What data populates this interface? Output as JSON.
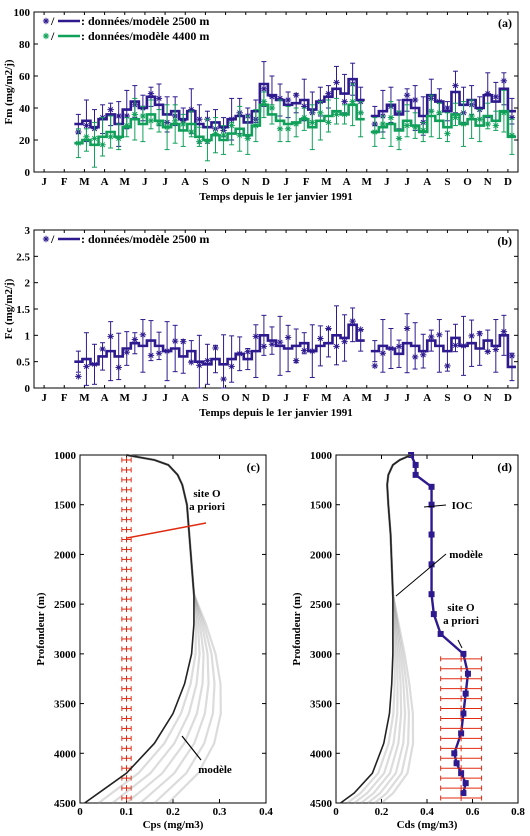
{
  "colors": {
    "data_2500": "#2e1a8e",
    "data_4400": "#10a05a",
    "site_o": "#e02a10",
    "model": "#222222",
    "model_shade": "#9a9a9a",
    "ioc": "#2e1a8e"
  },
  "chart_data": [
    {
      "id": "a",
      "panel_label": "(a)",
      "type": "line",
      "ylabel": "Fm (mg/m2/j)",
      "xlabel": "Temps depuis le 1er janvier 1991",
      "ylim": [
        0,
        100
      ],
      "yticks": [
        0,
        20,
        40,
        60,
        80,
        100
      ],
      "xtick_labels": [
        "J",
        "F",
        "M",
        "A",
        "M",
        "J",
        "J",
        "A",
        "S",
        "O",
        "N",
        "D",
        "J",
        "F",
        "M",
        "A",
        "M",
        "J",
        "J",
        "A",
        "S",
        "O",
        "N",
        "D"
      ],
      "legend": [
        {
          "marker": "*/",
          "label": ": données/modèle 2500 m"
        },
        {
          "marker": "*/",
          "label": ": données/modèle 4400 m"
        }
      ],
      "series": [
        {
          "name": "données/modèle 2500 m",
          "segments": [
            {
              "x": [
                2.2,
                2.6,
                3.0,
                3.4,
                3.8,
                4.2,
                4.6,
                5.0,
                5.4,
                5.8,
                6.2,
                6.6,
                7.0,
                7.4,
                7.8,
                8.2,
                8.6,
                9.0,
                9.4,
                9.8,
                10.2,
                10.6,
                11.0,
                11.4,
                11.8,
                12.2,
                12.6,
                13.0,
                13.4,
                13.8,
                14.2,
                14.6,
                15.0,
                15.4,
                15.8,
                16.2
              ],
              "y": [
                30,
                32,
                28,
                33,
                36,
                30,
                39,
                44,
                40,
                47,
                42,
                36,
                38,
                33,
                38,
                30,
                28,
                31,
                28,
                33,
                35,
                31,
                38,
                55,
                48,
                45,
                42,
                43,
                45,
                39,
                44,
                47,
                52,
                49,
                58,
                45
              ]
            },
            {
              "x": [
                16.9,
                17.3,
                17.7,
                18.1,
                18.5,
                18.9,
                19.3,
                19.7,
                20.1,
                20.5,
                20.9,
                21.3,
                21.7,
                22.1,
                22.5,
                22.9,
                23.3,
                23.7
              ],
              "y": [
                35,
                38,
                42,
                36,
                45,
                40,
                35,
                48,
                44,
                38,
                50,
                42,
                45,
                40,
                48,
                44,
                52,
                38
              ]
            }
          ]
        },
        {
          "name": "données/modèle 4400 m",
          "segments": [
            {
              "x": [
                2.2,
                2.6,
                3.0,
                3.4,
                3.8,
                4.2,
                4.6,
                5.0,
                5.4,
                5.8,
                6.2,
                6.6,
                7.0,
                7.4,
                7.8,
                8.2,
                8.6,
                9.0,
                9.4,
                9.8,
                10.2,
                10.6,
                11.0,
                11.4,
                11.8,
                12.2,
                12.6,
                13.0,
                13.4,
                13.8,
                14.2,
                14.6,
                15.0,
                15.4,
                15.8,
                16.2
              ],
              "y": [
                18,
                20,
                17,
                22,
                25,
                22,
                28,
                33,
                30,
                36,
                32,
                28,
                30,
                26,
                30,
                22,
                20,
                23,
                20,
                24,
                27,
                23,
                29,
                42,
                36,
                32,
                30,
                31,
                33,
                28,
                32,
                35,
                38,
                36,
                42,
                33
              ]
            },
            {
              "x": [
                16.9,
                17.3,
                17.7,
                18.1,
                18.5,
                18.9,
                19.3,
                19.7,
                20.1,
                20.5,
                20.9,
                21.3,
                21.7,
                22.1,
                22.5,
                22.9,
                23.3,
                23.7
              ],
              "y": [
                25,
                28,
                30,
                26,
                32,
                29,
                25,
                35,
                32,
                28,
                36,
                30,
                33,
                29,
                35,
                32,
                38,
                22
              ]
            }
          ]
        }
      ]
    },
    {
      "id": "b",
      "panel_label": "(b)",
      "type": "line",
      "ylabel": "Fc (mg/m2/j)",
      "xlabel": "Temps depuis le 1er janvier 1991",
      "ylim": [
        0,
        3
      ],
      "yticks": [
        0,
        0.5,
        1,
        1.5,
        2,
        2.5,
        3
      ],
      "xtick_labels": [
        "J",
        "F",
        "M",
        "A",
        "M",
        "J",
        "J",
        "A",
        "S",
        "O",
        "N",
        "D",
        "J",
        "F",
        "M",
        "A",
        "M",
        "J",
        "J",
        "A",
        "S",
        "O",
        "N",
        "D"
      ],
      "legend": [
        {
          "marker": "*/",
          "label": ": données/modèle 2500 m"
        }
      ],
      "series": [
        {
          "name": "données/modèle 2500 m",
          "segments": [
            {
              "x": [
                2.2,
                2.6,
                3.0,
                3.4,
                3.8,
                4.2,
                4.6,
                5.0,
                5.4,
                5.8,
                6.2,
                6.6,
                7.0,
                7.4,
                7.8,
                8.2,
                8.6,
                9.0,
                9.4,
                9.8,
                10.2,
                10.6,
                11.0,
                11.4,
                11.8,
                12.2,
                12.6,
                13.0,
                13.4,
                13.8,
                14.2,
                14.6,
                15.0,
                15.4,
                15.8,
                16.2
              ],
              "y": [
                0.5,
                0.55,
                0.45,
                0.6,
                0.7,
                0.6,
                0.75,
                0.85,
                0.8,
                0.9,
                0.8,
                0.7,
                0.75,
                0.6,
                0.7,
                0.5,
                0.45,
                0.55,
                0.45,
                0.55,
                0.65,
                0.55,
                0.7,
                1.0,
                0.9,
                0.8,
                0.75,
                0.8,
                0.85,
                0.7,
                0.8,
                0.85,
                1.0,
                0.95,
                1.2,
                0.9
              ]
            },
            {
              "x": [
                16.9,
                17.3,
                17.7,
                18.1,
                18.5,
                18.9,
                19.3,
                19.7,
                20.1,
                20.5,
                20.9,
                21.3,
                21.7,
                22.1,
                22.5,
                22.9,
                23.3,
                23.7
              ],
              "y": [
                0.7,
                0.8,
                0.75,
                0.65,
                0.85,
                0.8,
                0.7,
                0.9,
                0.8,
                0.7,
                0.95,
                0.8,
                0.85,
                0.75,
                0.9,
                0.8,
                1.0,
                0.4
              ]
            }
          ]
        }
      ]
    },
    {
      "id": "c",
      "panel_label": "(c)",
      "type": "line",
      "xlabel": "Cps (mg/m3)",
      "ylabel": "Profondeur (m)",
      "xlim": [
        0,
        0.4
      ],
      "ylim": [
        1000,
        4500
      ],
      "xticks": [
        0,
        0.1,
        0.2,
        0.3,
        0.4
      ],
      "yticks": [
        1000,
        1500,
        2000,
        2500,
        3000,
        3500,
        4000,
        4500
      ],
      "annotations": [
        "site O a priori",
        "modèle"
      ],
      "series": [
        {
          "name": "site O a priori",
          "x_const": 0.1,
          "err": 0.01,
          "depth_from": 1050,
          "depth_to": 4450,
          "depth_step": 100
        },
        {
          "name": "modèle",
          "depth": [
            1000,
            1050,
            1100,
            1200,
            1300,
            1500,
            1800,
            2100,
            2400,
            2700,
            3000,
            3300,
            3600,
            3900,
            4200,
            4400,
            4500
          ],
          "x": [
            0.1,
            0.16,
            0.19,
            0.21,
            0.22,
            0.23,
            0.235,
            0.24,
            0.245,
            0.245,
            0.24,
            0.225,
            0.2,
            0.16,
            0.1,
            0.04,
            0.01
          ]
        }
      ]
    },
    {
      "id": "d",
      "panel_label": "(d)",
      "type": "line",
      "xlabel": "Cds (mg/m3)",
      "ylabel": "Profondeur (m)",
      "xlim": [
        0,
        0.8
      ],
      "ylim": [
        1000,
        4500
      ],
      "xticks": [
        0,
        0.2,
        0.4,
        0.6,
        0.8
      ],
      "yticks": [
        1000,
        1500,
        2000,
        2500,
        3000,
        3500,
        4000,
        4500
      ],
      "annotations": [
        "IOC",
        "modèle",
        "site O a priori"
      ],
      "series": [
        {
          "name": "IOC",
          "depth": [
            1000,
            1100,
            1200,
            1320,
            1500,
            1800,
            2100,
            2400,
            2600,
            2800,
            3000,
            3200,
            3400,
            3600,
            3800,
            4000,
            4100,
            4200,
            4300,
            4400
          ],
          "x": [
            0.33,
            0.35,
            0.35,
            0.42,
            0.42,
            0.42,
            0.42,
            0.42,
            0.43,
            0.46,
            0.56,
            0.58,
            0.57,
            0.56,
            0.55,
            0.52,
            0.53,
            0.55,
            0.57,
            0.56
          ]
        },
        {
          "name": "site O a priori",
          "x_const": 0.55,
          "err": 0.09,
          "depth_from": 3050,
          "depth_to": 4450,
          "depth_step": 100
        },
        {
          "name": "modèle",
          "depth": [
            1000,
            1050,
            1100,
            1200,
            1300,
            1500,
            1800,
            2100,
            2400,
            2700,
            3000,
            3300,
            3600,
            3900,
            4200,
            4400,
            4500
          ],
          "x": [
            0.33,
            0.28,
            0.25,
            0.23,
            0.225,
            0.23,
            0.24,
            0.245,
            0.25,
            0.25,
            0.25,
            0.245,
            0.235,
            0.21,
            0.16,
            0.08,
            0.02
          ]
        }
      ]
    }
  ]
}
